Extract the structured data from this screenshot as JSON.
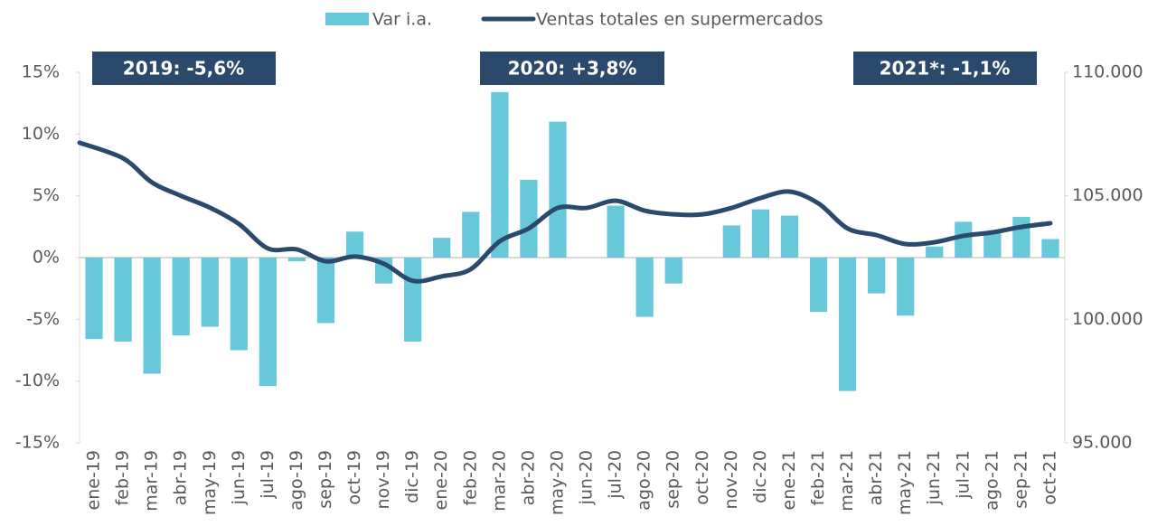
{
  "chart_data": {
    "type": "bar_line",
    "categories": [
      "ene-19",
      "feb-19",
      "mar-19",
      "abr-19",
      "may-19",
      "jun-19",
      "jul-19",
      "ago-19",
      "sep-19",
      "oct-19",
      "nov-19",
      "dic-19",
      "ene-20",
      "feb-20",
      "mar-20",
      "abr-20",
      "may-20",
      "jun-20",
      "jul-20",
      "ago-20",
      "sep-20",
      "oct-20",
      "nov-20",
      "dic-20",
      "ene-21",
      "feb-21",
      "mar-21",
      "abr-21",
      "may-21",
      "jun-21",
      "jul-21",
      "ago-21",
      "sep-21",
      "oct-21"
    ],
    "series": [
      {
        "name": "Var i.a.",
        "type": "bar",
        "color": "#67c8da",
        "values": [
          -6.6,
          -6.8,
          -9.4,
          -6.3,
          -5.6,
          -7.5,
          -10.4,
          -0.3,
          -5.3,
          2.1,
          -2.1,
          -6.8,
          1.6,
          3.7,
          13.4,
          6.3,
          11.0,
          0,
          4.2,
          -4.8,
          -2.1,
          0,
          2.6,
          3.9,
          3.4,
          -4.4,
          -10.8,
          -2.9,
          -4.7,
          0.9,
          2.9,
          2.0,
          3.3,
          1.5
        ]
      },
      {
        "name": "Ventas totales en supermercados",
        "type": "line",
        "color": "#2b4a6b",
        "axis": "y2",
        "values": [
          107150,
          106520,
          105540,
          105000,
          104520,
          103860,
          102870,
          102830,
          102350,
          102540,
          102250,
          101560,
          101740,
          102030,
          103160,
          103680,
          104510,
          104510,
          104800,
          104400,
          104250,
          104250,
          104510,
          104910,
          105170,
          104690,
          103680,
          103410,
          103050,
          103120,
          103380,
          103520,
          103740,
          103890
        ]
      }
    ],
    "ylim": [
      -15,
      15
    ],
    "yticks": [
      {
        "value": -15,
        "label": "-15%"
      },
      {
        "value": -10,
        "label": "-10%"
      },
      {
        "value": -5,
        "label": "-5%"
      },
      {
        "value": 0,
        "label": "0%"
      },
      {
        "value": 5,
        "label": "5%"
      },
      {
        "value": 10,
        "label": "10%"
      },
      {
        "value": 15,
        "label": "15%"
      }
    ],
    "y2lim": [
      95000,
      110000
    ],
    "y2ticks": [
      {
        "value": 95000,
        "label": "95.000"
      },
      {
        "value": 100000,
        "label": "100.000"
      },
      {
        "value": 105000,
        "label": "105.000"
      },
      {
        "value": 110000,
        "label": "110.000"
      }
    ],
    "annotations": [
      "2019:  -5,6%",
      "2020:  +3,8%",
      "2021*:  -1,1%"
    ],
    "annotation_color": "#2b4a6b"
  }
}
